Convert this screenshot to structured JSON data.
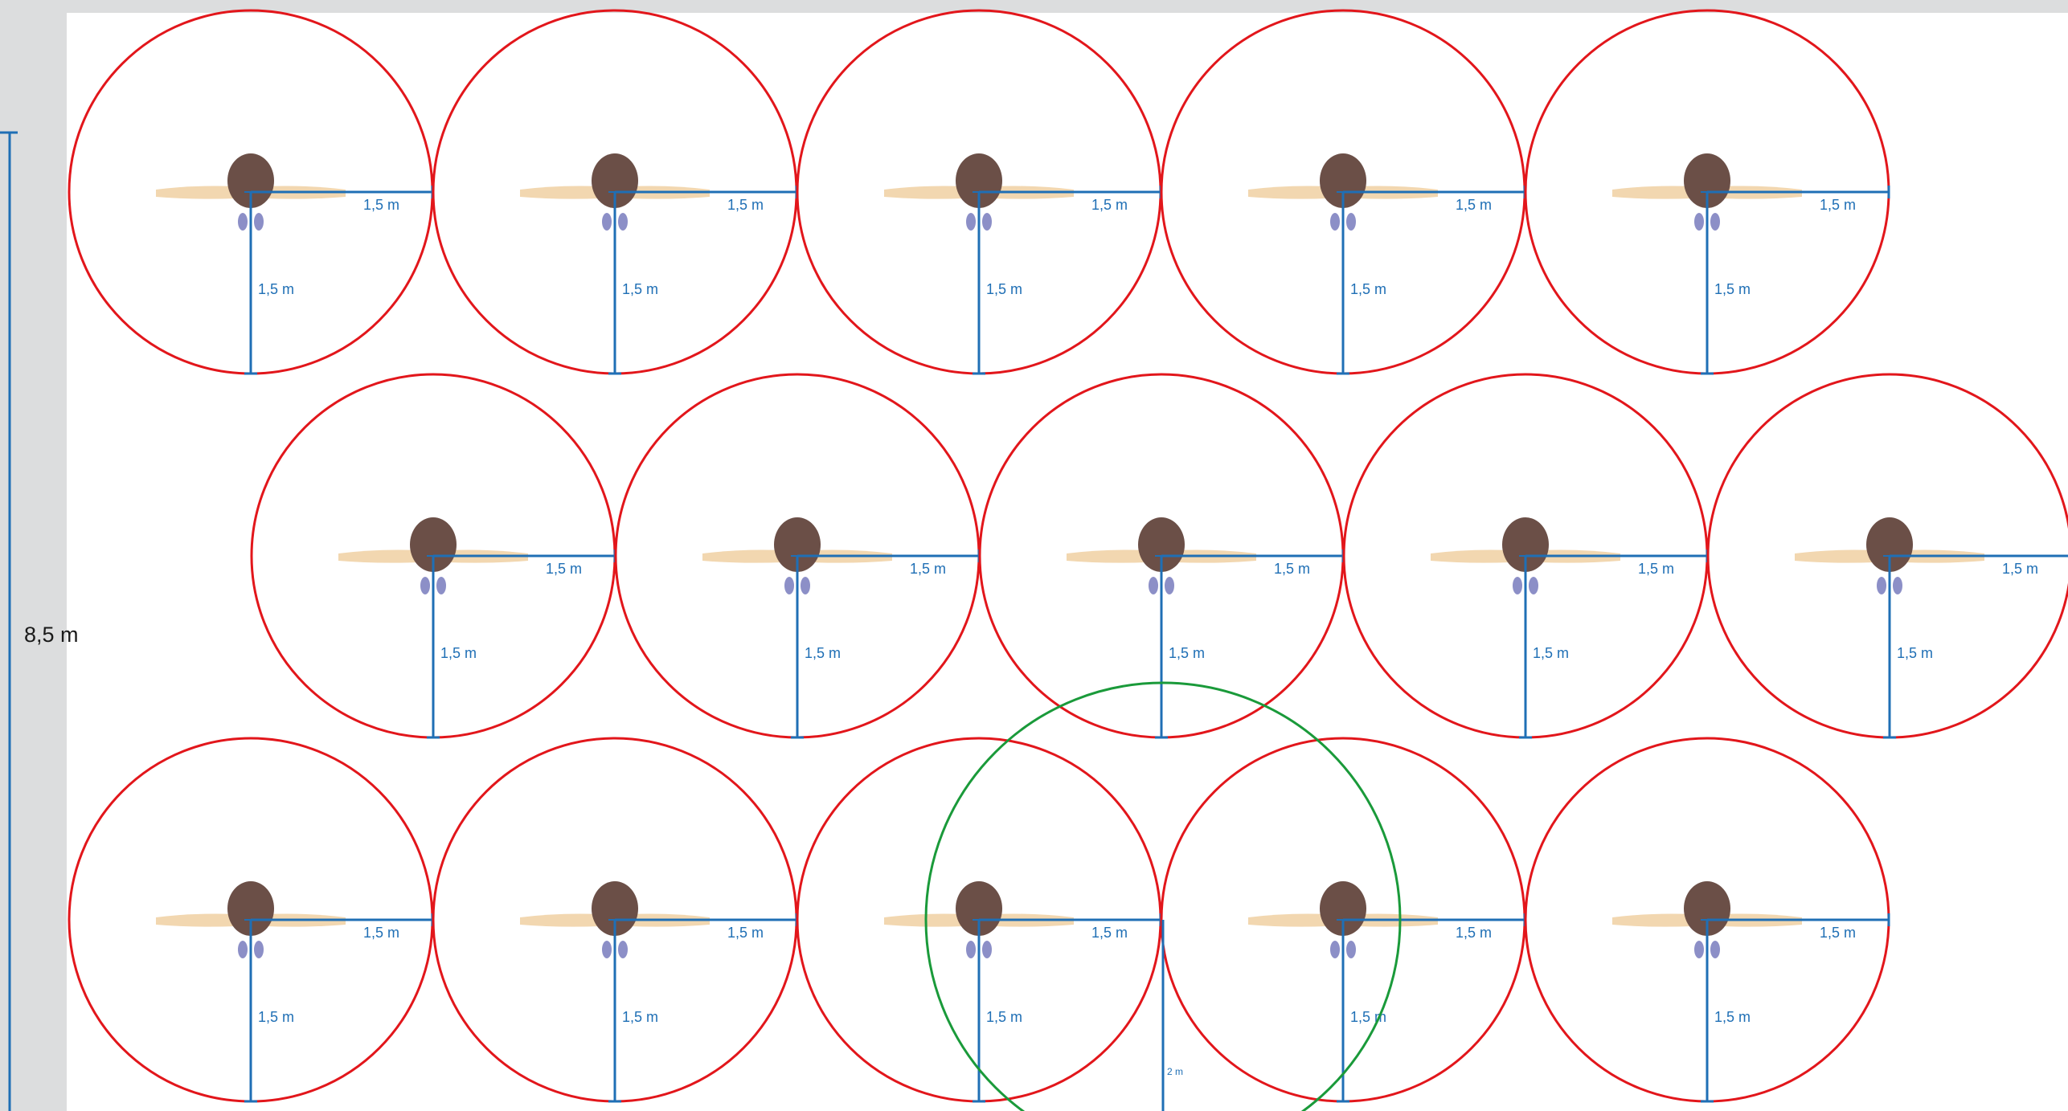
{
  "diagram": {
    "overall_height_label": "8,5 m",
    "radius_label": "1,5 m",
    "green_radius_label": "2 m",
    "colors": {
      "margin_bg": "#dcddde",
      "circle_stroke": "#e2161b",
      "green_stroke": "#1a9a3a",
      "dimension_line": "#1f6fb5",
      "dimension_text": "#1f6fb5",
      "label_text": "#1a1a1a",
      "hair": "#6b4f47",
      "skin": "#f2d7b0",
      "shirt": "#e9e9ee",
      "shoe": "#8c8fc7"
    },
    "rows": [
      {
        "name": "row-1",
        "persons": 5
      },
      {
        "name": "row-2",
        "persons": 5
      },
      {
        "name": "row-3",
        "persons": 5
      }
    ]
  }
}
